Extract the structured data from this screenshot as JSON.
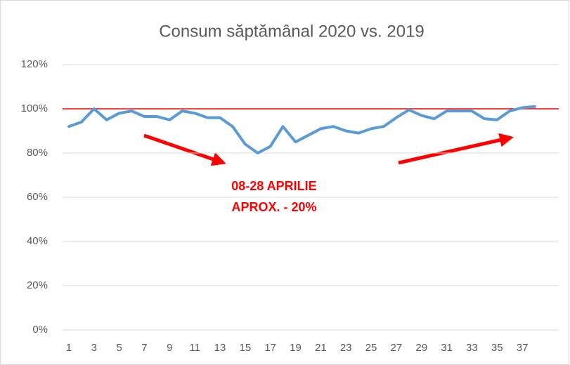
{
  "chart_data": {
    "type": "line",
    "title": "Consum săptămânal 2020 vs. 2019",
    "categories": [
      "1",
      null,
      "3",
      null,
      "5",
      null,
      "7",
      null,
      "9",
      null,
      "11",
      null,
      "13",
      null,
      "15",
      null,
      "17",
      null,
      "19",
      null,
      "21",
      null,
      "23",
      null,
      "25",
      null,
      "27",
      null,
      "29",
      null,
      "31",
      null,
      "33",
      null,
      "35",
      null,
      "37",
      null
    ],
    "series": [
      {
        "name": "2020 vs. 2019",
        "color": "#5b9bd5",
        "values": [
          92,
          94,
          100,
          95,
          98,
          99,
          96.5,
          96.5,
          95,
          99,
          98,
          96,
          96,
          92,
          84,
          80,
          83,
          92,
          85,
          88,
          91,
          92,
          90,
          89,
          91,
          92,
          96,
          99.5,
          97,
          95.5,
          99,
          99,
          99,
          95.5,
          95,
          99,
          100.5,
          101
        ]
      }
    ],
    "reference_line": {
      "value": 100,
      "color": "#ff0000"
    },
    "annotations": [
      "08-28 APRILIE",
      "APROX. - 20%"
    ],
    "ylim": [
      0,
      120
    ],
    "yticks": [
      {
        "value": 0,
        "label": "0%"
      },
      {
        "value": 20,
        "label": "20%"
      },
      {
        "value": 40,
        "label": "40%"
      },
      {
        "value": 60,
        "label": "60%"
      },
      {
        "value": 80,
        "label": "80%"
      },
      {
        "value": 100,
        "label": "100%"
      },
      {
        "value": 120,
        "label": "120%"
      }
    ],
    "grid": true
  }
}
